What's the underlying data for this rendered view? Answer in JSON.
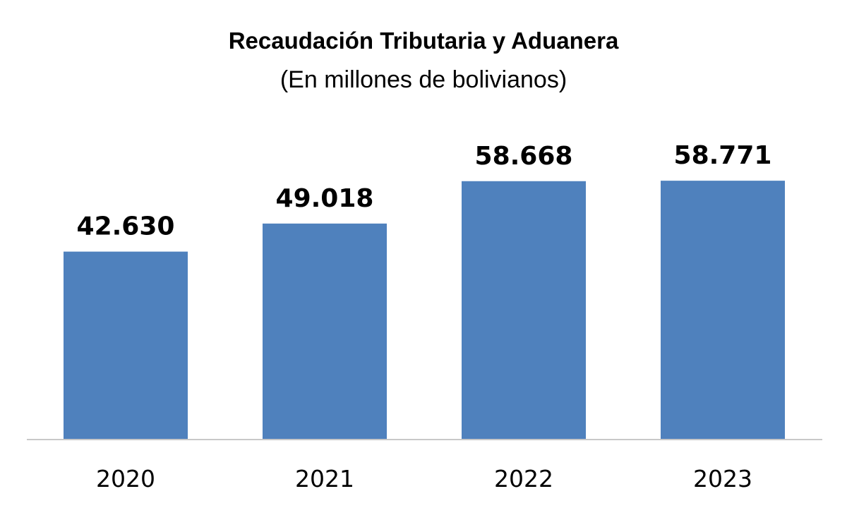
{
  "chart_data": {
    "type": "bar",
    "title": "Recaudación Tributaria y Aduanera",
    "subtitle": "(En millones de bolivianos)",
    "categories": [
      "2020",
      "2021",
      "2022",
      "2023"
    ],
    "values": [
      42630,
      49018,
      58668,
      58771
    ],
    "value_labels": [
      "42.630",
      "49.018",
      "58.668",
      "58.771"
    ],
    "xlabel": "",
    "ylabel": "",
    "ylim": [
      0,
      71000
    ],
    "grid": false,
    "legend": "none",
    "bar_color": "#4f81bd",
    "axis_color": "#c8c8c8"
  }
}
